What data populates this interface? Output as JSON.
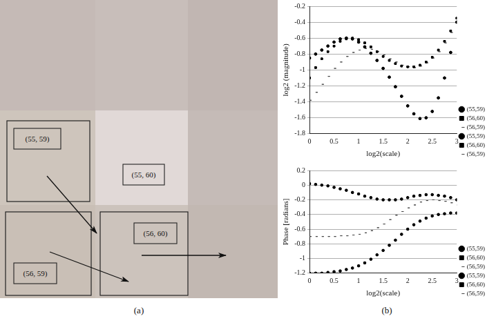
{
  "figure": {
    "panel_a": {
      "caption": "(a)",
      "cell_labels": [
        "(55, 59)",
        "(55, 60)",
        "(56, 59)",
        "(56, 60)"
      ]
    },
    "panel_b": {
      "caption": "(b)"
    }
  },
  "chart_data": [
    {
      "type": "scatter",
      "x_label": "log2(scale)",
      "y_label": "log2 (magnitude)",
      "x": [
        0,
        0.125,
        0.25,
        0.375,
        0.5,
        0.625,
        0.75,
        0.875,
        1,
        1.125,
        1.25,
        1.375,
        1.5,
        1.625,
        1.75,
        1.875,
        2,
        2.125,
        2.25,
        2.375,
        2.5,
        2.625,
        2.75,
        2.875,
        3
      ],
      "xlim": [
        0,
        3
      ],
      "xticks": [
        0,
        0.5,
        1,
        1.5,
        2,
        2.5,
        3
      ],
      "ylim": [
        -1.8,
        -0.2
      ],
      "yticks": [
        -1.8,
        -1.6,
        -1.4,
        -1.2,
        -1,
        -0.8,
        -0.6,
        -0.4,
        -0.2
      ],
      "grid": "y",
      "legend": "right",
      "line_style": "none",
      "series": [
        {
          "name": "(55,59)",
          "color": "#000000",
          "marker": "circle",
          "values": [
            -0.85,
            -0.8,
            -0.75,
            -0.7,
            -0.65,
            -0.61,
            -0.6,
            -0.61,
            -0.65,
            -0.71,
            -0.79,
            -0.88,
            -0.98,
            -1.09,
            -1.21,
            -1.33,
            -1.45,
            -1.55,
            -1.61,
            -1.6,
            -1.52,
            -1.35,
            -1.1,
            -0.78,
            -0.4
          ]
        },
        {
          "name": "(56,60)",
          "color": "#000000",
          "marker": "square",
          "values": [
            -1.1,
            -0.97,
            -0.86,
            -0.77,
            -0.7,
            -0.64,
            -0.61,
            -0.6,
            -0.62,
            -0.66,
            -0.71,
            -0.77,
            -0.83,
            -0.88,
            -0.92,
            -0.95,
            -0.96,
            -0.96,
            -0.94,
            -0.9,
            -0.84,
            -0.75,
            -0.64,
            -0.51,
            -0.35
          ]
        },
        {
          "name": "(56,59)",
          "color": "#444444",
          "marker": "dash",
          "values": [
            -1.38,
            -1.28,
            -1.18,
            -1.08,
            -0.98,
            -0.9,
            -0.83,
            -0.78,
            -0.75,
            -0.73,
            -0.74,
            -0.77,
            -0.81,
            -0.86,
            -0.9,
            -0.94,
            -0.96,
            -0.97,
            -0.95,
            -0.91,
            -0.85,
            -0.77,
            -0.66,
            -0.53,
            -0.38
          ]
        },
        {
          "name": "(55,59)",
          "color": "#000000",
          "marker": "circle",
          "values": [
            -0.85,
            -0.8,
            -0.75,
            -0.7,
            -0.65,
            -0.61,
            -0.6,
            -0.61,
            -0.65,
            -0.71,
            -0.79,
            -0.88,
            -0.98,
            -1.09,
            -1.21,
            -1.33,
            -1.45,
            -1.55,
            -1.61,
            -1.6,
            -1.52,
            -1.35,
            -1.1,
            -0.78,
            -0.4
          ]
        },
        {
          "name": "(56,60)",
          "color": "#000000",
          "marker": "square",
          "values": [
            -1.1,
            -0.97,
            -0.86,
            -0.77,
            -0.7,
            -0.64,
            -0.61,
            -0.6,
            -0.62,
            -0.66,
            -0.71,
            -0.77,
            -0.83,
            -0.88,
            -0.92,
            -0.95,
            -0.96,
            -0.96,
            -0.94,
            -0.9,
            -0.84,
            -0.75,
            -0.64,
            -0.51,
            -0.35
          ]
        },
        {
          "name": "(56,59)",
          "color": "#444444",
          "marker": "dash",
          "values": [
            -1.38,
            -1.28,
            -1.18,
            -1.08,
            -0.98,
            -0.9,
            -0.83,
            -0.78,
            -0.75,
            -0.73,
            -0.74,
            -0.77,
            -0.81,
            -0.86,
            -0.9,
            -0.94,
            -0.96,
            -0.97,
            -0.95,
            -0.91,
            -0.85,
            -0.77,
            -0.66,
            -0.53,
            -0.38
          ]
        }
      ]
    },
    {
      "type": "scatter",
      "x_label": "log2(scale)",
      "y_label": "Phase [radians]",
      "x": [
        0,
        0.125,
        0.25,
        0.375,
        0.5,
        0.625,
        0.75,
        0.875,
        1,
        1.125,
        1.25,
        1.375,
        1.5,
        1.625,
        1.75,
        1.875,
        2,
        2.125,
        2.25,
        2.375,
        2.5,
        2.625,
        2.75,
        2.875,
        3
      ],
      "xlim": [
        0,
        3
      ],
      "xticks": [
        0,
        0.5,
        1,
        1.5,
        2,
        2.5,
        3
      ],
      "ylim": [
        -1.2,
        0.2
      ],
      "yticks": [
        -1.2,
        -1,
        -0.8,
        -0.6,
        -0.4,
        -0.2,
        0,
        0.2
      ],
      "grid": "y",
      "legend": "right",
      "line_style": "none",
      "series": [
        {
          "name": "(55,59)",
          "color": "#000000",
          "marker": "circle",
          "values": [
            0.02,
            0.01,
            0.0,
            -0.01,
            -0.03,
            -0.05,
            -0.07,
            -0.1,
            -0.12,
            -0.15,
            -0.17,
            -0.19,
            -0.2,
            -0.2,
            -0.2,
            -0.19,
            -0.17,
            -0.15,
            -0.14,
            -0.13,
            -0.13,
            -0.14,
            -0.15,
            -0.17,
            -0.2
          ]
        },
        {
          "name": "(56,60)",
          "color": "#000000",
          "marker": "square",
          "values": [
            0.02,
            0.01,
            0.0,
            -0.01,
            -0.03,
            -0.05,
            -0.07,
            -0.1,
            -0.12,
            -0.15,
            -0.17,
            -0.19,
            -0.2,
            -0.2,
            -0.2,
            -0.19,
            -0.17,
            -0.15,
            -0.14,
            -0.13,
            -0.13,
            -0.14,
            -0.15,
            -0.17,
            -0.2
          ]
        },
        {
          "name": "(56,59)",
          "color": "#444444",
          "marker": "dash",
          "values": [
            -0.7,
            -0.7,
            -0.7,
            -0.7,
            -0.7,
            -0.69,
            -0.69,
            -0.68,
            -0.67,
            -0.65,
            -0.62,
            -0.58,
            -0.53,
            -0.47,
            -0.41,
            -0.36,
            -0.31,
            -0.27,
            -0.23,
            -0.21,
            -0.2,
            -0.21,
            -0.22,
            -0.24,
            -0.27
          ]
        },
        {
          "name": "(55,59)",
          "color": "#000000",
          "marker": "circle",
          "values": [
            -1.2,
            -1.2,
            -1.2,
            -1.19,
            -1.18,
            -1.17,
            -1.15,
            -1.13,
            -1.1,
            -1.06,
            -1.01,
            -0.95,
            -0.89,
            -0.82,
            -0.75,
            -0.67,
            -0.6,
            -0.54,
            -0.49,
            -0.45,
            -0.42,
            -0.4,
            -0.39,
            -0.38,
            -0.38
          ]
        },
        {
          "name": "(56,60)",
          "color": "#000000",
          "marker": "square",
          "values": [
            -1.2,
            -1.2,
            -1.2,
            -1.19,
            -1.18,
            -1.17,
            -1.15,
            -1.13,
            -1.1,
            -1.06,
            -1.01,
            -0.95,
            -0.89,
            -0.82,
            -0.75,
            -0.67,
            -0.6,
            -0.54,
            -0.49,
            -0.45,
            -0.42,
            -0.4,
            -0.39,
            -0.38,
            -0.38
          ]
        },
        {
          "name": "(56,59)",
          "color": "#444444",
          "marker": "dash",
          "values": [
            -0.7,
            -0.7,
            -0.7,
            -0.7,
            -0.7,
            -0.69,
            -0.69,
            -0.68,
            -0.67,
            -0.65,
            -0.62,
            -0.58,
            -0.53,
            -0.47,
            -0.41,
            -0.36,
            -0.31,
            -0.27,
            -0.23,
            -0.21,
            -0.2,
            -0.21,
            -0.22,
            -0.24,
            -0.27
          ]
        }
      ]
    }
  ]
}
